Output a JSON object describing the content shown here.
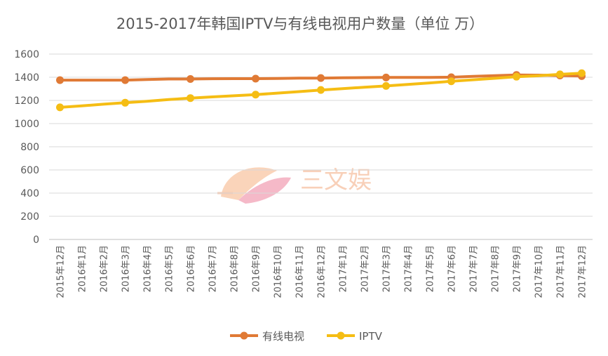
{
  "chart_data": {
    "type": "line",
    "title": "2015-2017年韩国IPTV与有线电视用户数量（单位 万）",
    "xlabel": "",
    "ylabel": "",
    "ylim": [
      0,
      1600
    ],
    "yticks": [
      0,
      200,
      400,
      600,
      800,
      1000,
      1200,
      1400,
      1600
    ],
    "grid": true,
    "legend_position": "bottom",
    "categories": [
      "2015年12月",
      "2016年1月",
      "2016年2月",
      "2016年3月",
      "2016年4月",
      "2016年5月",
      "2016年6月",
      "2016年7月",
      "2016年8月",
      "2016年9月",
      "2016年10月",
      "2016年11月",
      "2016年12月",
      "2017年1月",
      "2017年2月",
      "2017年3月",
      "2017年4月",
      "2017年5月",
      "2017年6月",
      "2017年7月",
      "2017年8月",
      "2017年9月",
      "2017年10月",
      "2017年11月",
      "2017年12月"
    ],
    "series": [
      {
        "name": "有线电视",
        "color": "#e07a35",
        "marker_indices": [
          0,
          3,
          6,
          9,
          12,
          15,
          18,
          21,
          23,
          24
        ],
        "values": [
          1375,
          1375,
          1375,
          1375,
          1380,
          1385,
          1385,
          1387,
          1388,
          1388,
          1390,
          1392,
          1393,
          1395,
          1397,
          1398,
          1398,
          1399,
          1400,
          1407,
          1414,
          1420,
          1418,
          1415,
          1410
        ]
      },
      {
        "name": "IPTV",
        "color": "#f5bd14",
        "marker_indices": [
          0,
          3,
          6,
          9,
          12,
          15,
          18,
          21,
          23,
          24
        ],
        "values": [
          1140,
          1153,
          1167,
          1180,
          1193,
          1207,
          1220,
          1230,
          1240,
          1250,
          1263,
          1276,
          1290,
          1302,
          1314,
          1325,
          1338,
          1351,
          1365,
          1378,
          1391,
          1405,
          1413,
          1425,
          1435
        ]
      }
    ]
  },
  "watermark": {
    "text": "三文娱"
  }
}
